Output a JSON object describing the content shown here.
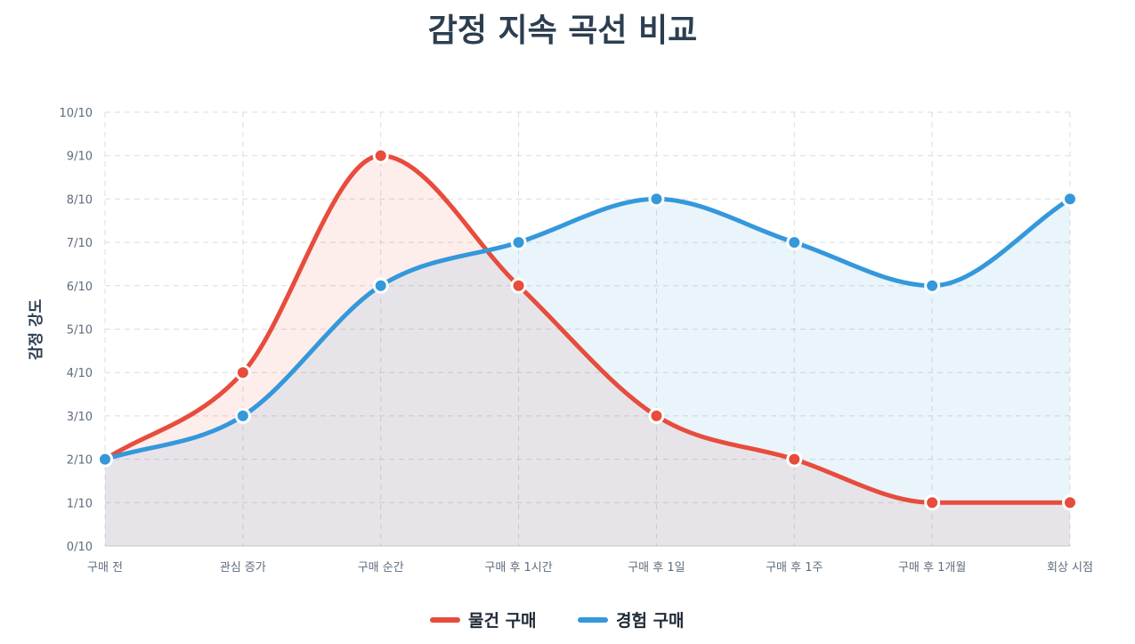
{
  "chart_data": {
    "type": "line",
    "title": "감정 지속 곡선 비교",
    "xlabel": "",
    "ylabel": "감정 강도",
    "categories": [
      "구매 전",
      "관심 증가",
      "구매 순간",
      "구매 후 1시간",
      "구매 후 1일",
      "구매 후 1주",
      "구매 후 1개월",
      "회상 시점"
    ],
    "ylim": [
      0,
      10
    ],
    "yticks": [
      "0/10",
      "1/10",
      "2/10",
      "3/10",
      "4/10",
      "5/10",
      "6/10",
      "7/10",
      "8/10",
      "9/10",
      "10/10"
    ],
    "grid": true,
    "legend_position": "bottom-center",
    "fill": true,
    "series": [
      {
        "name": "물건 구매",
        "color": "#e74c3c",
        "fill": "rgba(231,76,60,0.10)",
        "values": [
          2,
          4,
          9,
          6,
          3,
          2,
          1,
          1
        ]
      },
      {
        "name": "경험 구매",
        "color": "#3498db",
        "fill": "rgba(52,152,219,0.11)",
        "values": [
          2,
          3,
          6,
          7,
          8,
          7,
          6,
          8
        ]
      }
    ]
  }
}
